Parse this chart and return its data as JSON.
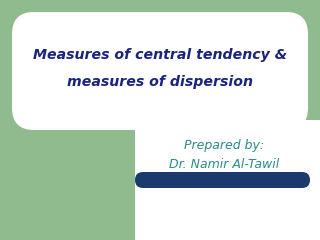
{
  "bg_color": "#8fbb8f",
  "white_color": "#ffffff",
  "title_text_line1": "Measures of central tendency &",
  "title_text_line2": "measures of dispersion",
  "title_color": "#1a237e",
  "subtitle_line1": "Prepared by:",
  "subtitle_line2": "Dr. Namir Al-Tawil",
  "subtitle_color": "#2a8a8a",
  "bar_color": "#1a3a6e",
  "figwidth": 3.2,
  "figheight": 2.4,
  "dpi": 100
}
